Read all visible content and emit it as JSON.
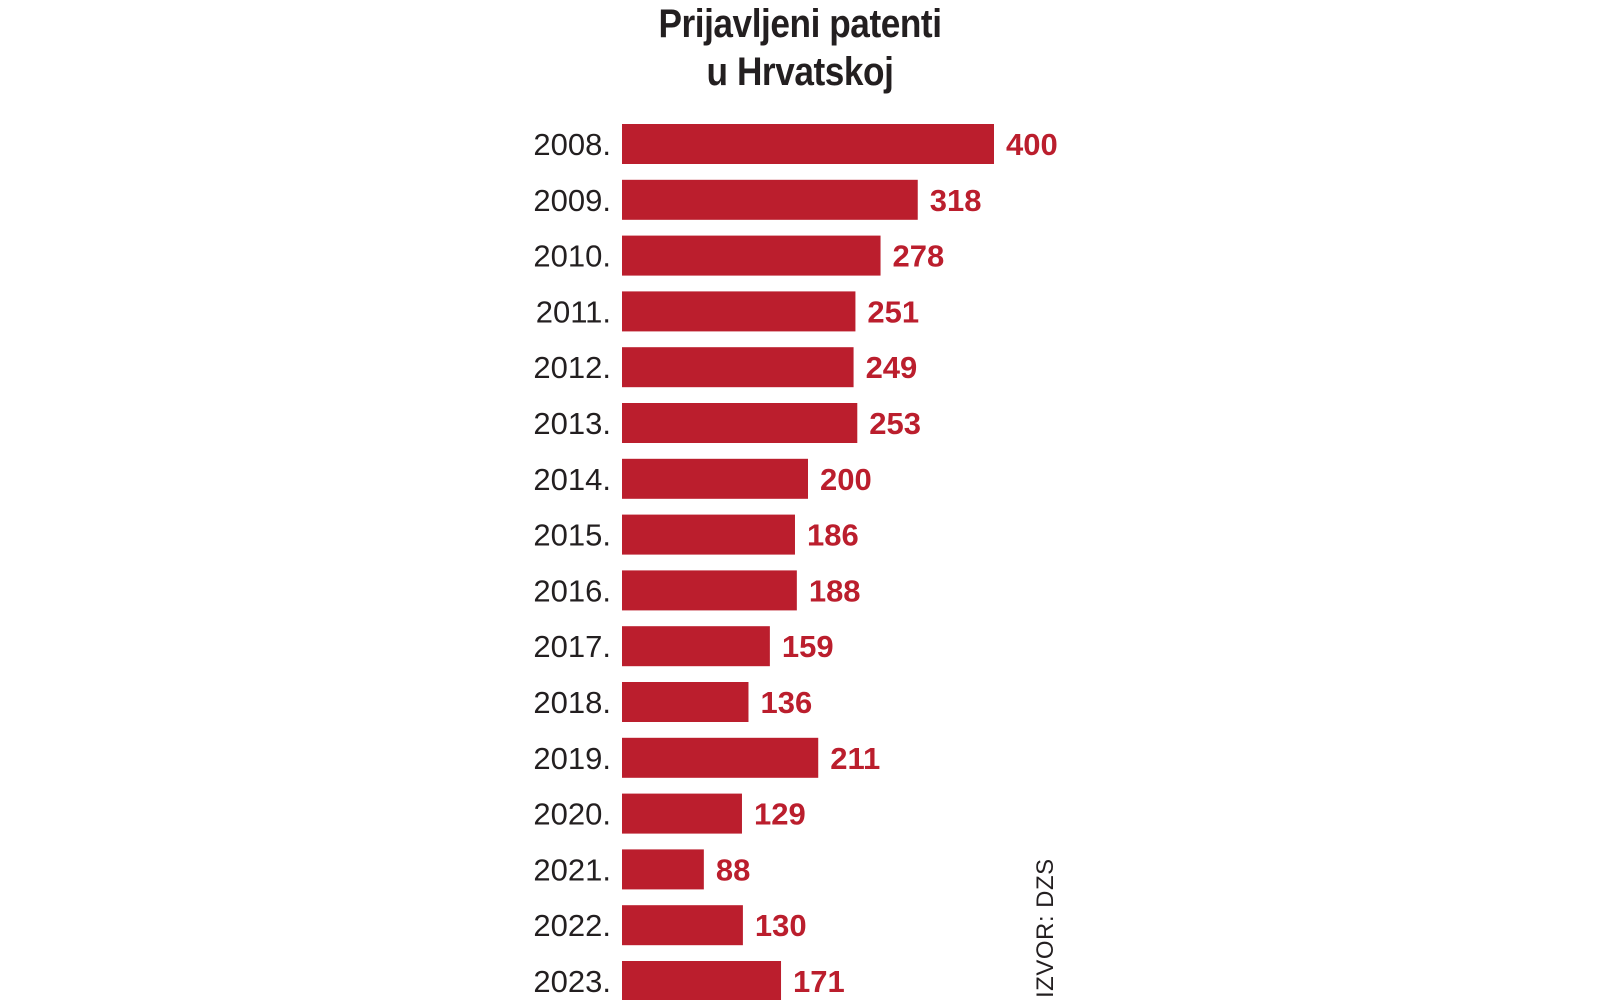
{
  "chart_data": {
    "type": "bar",
    "orientation": "horizontal",
    "title_line1": "Prijavljeni patenti",
    "title_line2": "u Hrvatskoj",
    "categories": [
      "2008.",
      "2009.",
      "2010.",
      "2011.",
      "2012.",
      "2013.",
      "2014.",
      "2015.",
      "2016.",
      "2017.",
      "2018.",
      "2019.",
      "2020.",
      "2021.",
      "2022.",
      "2023."
    ],
    "values": [
      400,
      318,
      278,
      251,
      249,
      253,
      200,
      186,
      188,
      159,
      136,
      211,
      129,
      88,
      130,
      171
    ],
    "xlim": [
      0,
      400
    ],
    "grid": false,
    "bar_color": "#bb1e2d",
    "source": "IZVOR: DZS"
  }
}
